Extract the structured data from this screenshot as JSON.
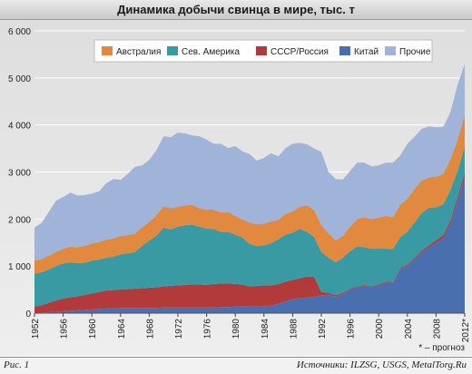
{
  "header": {
    "title": "Динамика добычи свинца в мире, тыс. т"
  },
  "footer": {
    "figure_label": "Рис. 1",
    "sources": "Источники: ILZSG, USGS, MetalTorg.Ru"
  },
  "chart_data": {
    "type": "area",
    "stacked": true,
    "ylim": [
      0,
      6000
    ],
    "yticks": [
      0,
      1000,
      2000,
      3000,
      4000,
      5000,
      6000
    ],
    "ytick_labels": [
      "0",
      "1 000",
      "2 000",
      "3 000",
      "4 000",
      "5 000",
      "6 000"
    ],
    "xlim": [
      1952,
      2012
    ],
    "xticks": [
      1952,
      1956,
      1960,
      1964,
      1968,
      1972,
      1976,
      1980,
      1984,
      1988,
      1992,
      1996,
      2000,
      2004,
      2008,
      2012
    ],
    "xtick_labels": [
      "1952",
      "1956",
      "1960",
      "1964",
      "1968",
      "1972",
      "1976",
      "1980",
      "1984",
      "1988",
      "1992",
      "1996",
      "2000",
      "2004",
      "2008",
      "2012*"
    ],
    "legend_position": "top",
    "grid": true,
    "footnote": "* – прогноз",
    "x": [
      1952,
      1953,
      1954,
      1955,
      1956,
      1957,
      1958,
      1959,
      1960,
      1961,
      1962,
      1963,
      1964,
      1965,
      1966,
      1967,
      1968,
      1969,
      1970,
      1971,
      1972,
      1973,
      1974,
      1975,
      1976,
      1977,
      1978,
      1979,
      1980,
      1981,
      1982,
      1983,
      1984,
      1985,
      1986,
      1987,
      1988,
      1989,
      1990,
      1991,
      1992,
      1993,
      1994,
      1995,
      1996,
      1997,
      1998,
      1999,
      2000,
      2001,
      2002,
      2003,
      2004,
      2005,
      2006,
      2007,
      2008,
      2009,
      2010,
      2011,
      2012
    ],
    "series": [
      {
        "name": "Китай",
        "color": "#4a6fae",
        "values": [
          0,
          10,
          20,
          30,
          40,
          50,
          60,
          70,
          80,
          90,
          100,
          100,
          110,
          110,
          110,
          110,
          110,
          110,
          120,
          120,
          120,
          120,
          120,
          120,
          120,
          120,
          130,
          130,
          140,
          140,
          140,
          140,
          150,
          160,
          200,
          250,
          300,
          320,
          330,
          350,
          380,
          390,
          350,
          400,
          500,
          550,
          580,
          550,
          600,
          650,
          640,
          950,
          1000,
          1150,
          1300,
          1400,
          1500,
          1600,
          1900,
          2400,
          2900
        ]
      },
      {
        "name": "СССР/Россия",
        "color": "#b23a3a",
        "values": [
          140,
          160,
          200,
          240,
          270,
          290,
          300,
          320,
          340,
          360,
          380,
          390,
          400,
          400,
          410,
          420,
          430,
          440,
          450,
          460,
          470,
          480,
          490,
          490,
          480,
          500,
          500,
          500,
          480,
          470,
          430,
          440,
          440,
          430,
          420,
          420,
          410,
          420,
          450,
          420,
          70,
          40,
          30,
          30,
          20,
          20,
          20,
          20,
          20,
          20,
          20,
          20,
          30,
          30,
          30,
          40,
          50,
          60,
          70,
          80,
          90
        ]
      },
      {
        "name": "Сев. Америка",
        "color": "#3a9aa4",
        "values": [
          700,
          700,
          710,
          730,
          750,
          740,
          700,
          680,
          700,
          690,
          700,
          710,
          740,
          760,
          780,
          900,
          1000,
          1100,
          1250,
          1200,
          1250,
          1270,
          1270,
          1230,
          1200,
          1170,
          1100,
          1100,
          1050,
          1000,
          900,
          850,
          850,
          900,
          950,
          1000,
          1000,
          1050,
          950,
          850,
          850,
          750,
          700,
          750,
          800,
          850,
          800,
          800,
          750,
          700,
          700,
          650,
          700,
          750,
          800,
          800,
          700,
          650,
          650,
          550,
          550
        ]
      },
      {
        "name": "Австралия",
        "color": "#e1893f",
        "values": [
          280,
          280,
          290,
          300,
          310,
          330,
          340,
          360,
          360,
          370,
          380,
          390,
          390,
          390,
          390,
          390,
          400,
          430,
          450,
          450,
          420,
          420,
          420,
          390,
          400,
          410,
          410,
          420,
          400,
          380,
          460,
          460,
          460,
          460,
          410,
          440,
          450,
          480,
          560,
          570,
          570,
          520,
          470,
          460,
          520,
          580,
          640,
          630,
          660,
          700,
          680,
          690,
          700,
          710,
          690,
          650,
          650,
          650,
          650,
          650,
          680
        ]
      },
      {
        "name": "Прочие",
        "color": "#a0b3d9",
        "values": [
          700,
          770,
          930,
          1090,
          1100,
          1150,
          1100,
          1080,
          1060,
          1080,
          1200,
          1260,
          1190,
          1300,
          1420,
          1320,
          1320,
          1380,
          1490,
          1510,
          1580,
          1530,
          1480,
          1530,
          1490,
          1400,
          1460,
          1360,
          1480,
          1450,
          1450,
          1350,
          1400,
          1450,
          1350,
          1400,
          1440,
          1350,
          1300,
          1310,
          1560,
          1300,
          1300,
          1200,
          1180,
          1200,
          1160,
          1120,
          1110,
          1130,
          1160,
          1040,
          1170,
          1110,
          1100,
          1080,
          1050,
          1000,
          1000,
          1170,
          1080
        ]
      }
    ]
  }
}
